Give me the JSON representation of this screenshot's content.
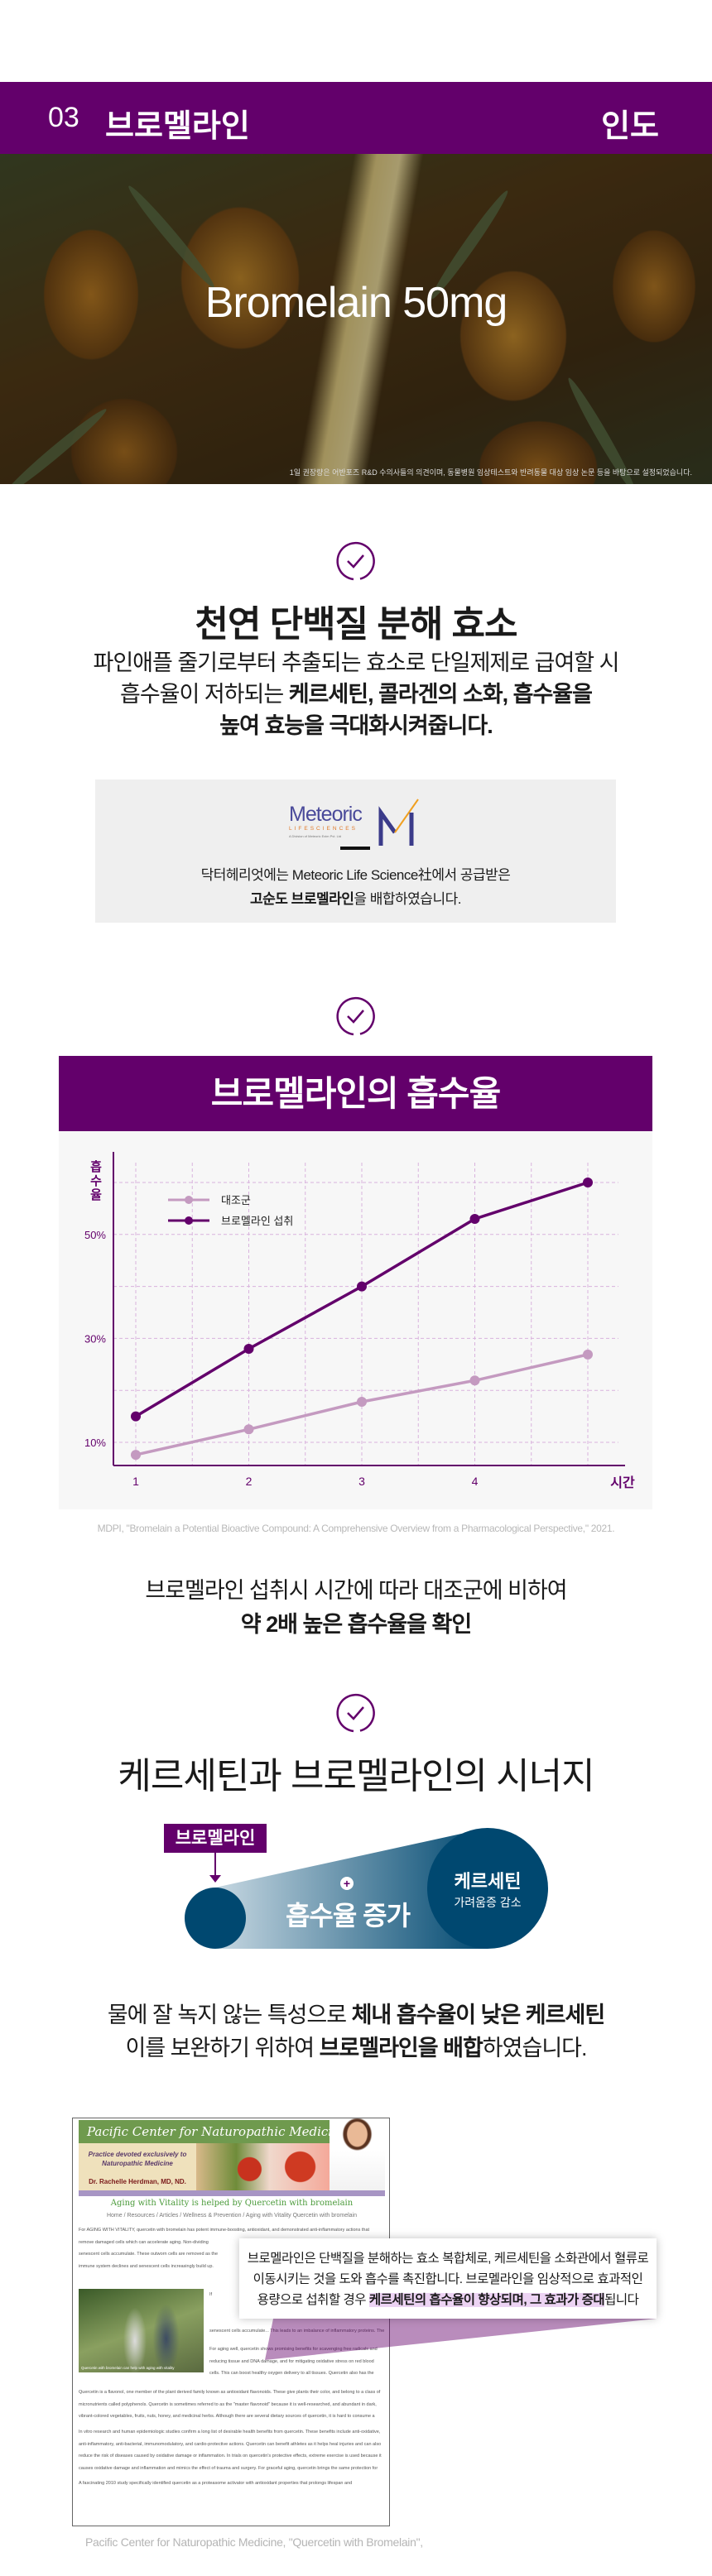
{
  "header": {
    "number": "03",
    "title": "브로멜라인",
    "origin": "인도"
  },
  "hero": {
    "headline": "Bromelain 50mg",
    "note": "1일 권장량은 어반포즈 R&D 수의사들의 의견이며, 동물병원 임상테스트와 반려동물 대상 임상 논문 등을 바탕으로 설정되었습니다."
  },
  "section1": {
    "title": "천연 단백질 분해 효소",
    "line1": "파인애플 줄기로부터 추출되는 효소로 단일제제로 급여할 시",
    "line2_a": "흡수율이 저하되는 ",
    "line2_b": "케르세틴, 콜라겐의 소화, 흡수율을",
    "line3": "높여 효능을 극대화시켜줍니다.",
    "supplier": {
      "logo_text": "Meteoric",
      "logo_sub": "LIFESCIENCES",
      "logo_tag": "A Division of Meteoric Exim Pvt. Ltd",
      "line1": "닥터헤리엇에는 Meteoric Life Science社에서 공급받은",
      "line2_bold": "고순도 브로멜라인",
      "line2_rest": "을 배합하였습니다."
    }
  },
  "chart_section": {
    "title": "브로멜라인의 흡수율",
    "citation": "MDPI, \"Bromelain a Potential Bioactive Compound: A Comprehensive Overview from a Pharmacological Perspective,\" 2021.",
    "summary_line1": "브로멜라인 섭취시 시간에 따라 대조군에 비하여",
    "summary_line2": "약 2배 높은 흡수율을 확인"
  },
  "chart_data": {
    "type": "line",
    "xlabel": "시간",
    "ylabel": "흡수율",
    "x": [
      1,
      2,
      3,
      4,
      5
    ],
    "x_tick_labels": [
      "1",
      "2",
      "3",
      "4"
    ],
    "y_tick_labels": [
      "50%",
      "30%",
      "10%"
    ],
    "y_tick_values": [
      50,
      30,
      10
    ],
    "ylim": [
      5.5,
      65
    ],
    "grid": true,
    "legend_position": "top-left",
    "series": [
      {
        "name": "대조군",
        "values": [
          7.6,
          12.5,
          17.8,
          21.9,
          26.9
        ],
        "color": "#c49ac0"
      },
      {
        "name": "브로멜라인 섭취",
        "values": [
          15,
          28,
          40,
          53,
          60
        ],
        "color": "#63006b"
      }
    ]
  },
  "synergy": {
    "title": "케르세틴과 브로멜라인의 시너지",
    "tag": "브로멜라인",
    "plus": "+",
    "center_label": "흡수율 증가",
    "circle_title": "케르세틴",
    "circle_sub": "가려움증 감소",
    "line1_a": "물에 잘 녹지 않는 특성으로 ",
    "line1_b": "체내 흡수율이 낮은 케르세틴",
    "line2_a": "이를 보완하기 위하여 ",
    "line2_b": "브로멜라인을 배합",
    "line2_c": "하였습니다."
  },
  "article": {
    "banner_title": "Pacific Center for Naturopathic Medicine",
    "tagline1": "Practice devoted exclusively to",
    "tagline2": "Naturopathic Medicine",
    "doctor": "Dr. Rachelle Herdman, MD, ND.",
    "headline": "Aging with Vitality is helped by Quercetin with bromelain",
    "breadcrumb": "Home / Resources / Articles / Wellness & Prevention / Aging with Vitality Quercetin with bromelain",
    "para1": "For AGING WITH VITALITY, quercetin with bromelain has potent immune-boosting, antioxidant, and demonstrated anti-inflammatory actions that remove damaged cells which can accelerate aging. Non-dividing senescent cells accumulate. These outworn cells are removed as the immune system declines and senescent cells increasingly build up. Quercetin with bromelain removes these cells by inducing time-appropriate apoptosis or cell death, promoting health and enhancing youthfulness of tissues.",
    "photo_caption": "Quercetin with bromelain can help with aging with vitality",
    "para2": "If senescent cells accumulate... This leads to an imbalance of inflammatory proteins. The specific type of inflammation that follows is believed to be one driver of the aging process.",
    "para3": "For aging well, quercetin shows promising benefits for scavenging free radicals and reducing tissue and DNA damage, and for mitigating oxidative stress on red blood cells. This can boost healthy oxygen delivery to all tissues. Quercetin also has the ability to calm and balance the body's pro-inflammatory pathways and down regulate enzymes and hormones responsible for the inflammatory response. By neutralizing oxygen free radicals and reactive molecules of nitrogen, quercetin shields tissues from oxidative damage. In regard to aging with vitality, quercetin increases the number and function of mitochondria, the energy-producing factories found in cells, providing a profound boost to the central nervous system and entire metabolism.",
    "para4": "Quercetin is a flavonol, one member of the plant derived family known as antioxidant flavonoids. These give plants their color, and belong to a class of micronutrients called polyphenols. Quercetin is sometimes referred to as the \"master flavonoid\" because it is well-researched, and abundant in dark, vibrant-colored vegetables, fruits, nuts, honey, and medicinal herbs. Although there are several dietary sources of quercetin, it is hard to consume a sufficient quantity in food to reach a therapeutic level.",
    "para5": "In vitro research and human epidemiologic studies confirm a long list of desirable health benefits from quercetin. These benefits include anti-oxidative, anti-inflammatory, anti-bacterial, immunomodulatory, and cardio-protective actions. Quercetin can benefit athletes as it helps heal injuries and can also reduce the risk of diseases caused by oxidative damage or inflammation. In trials on quercetin's protective effects, extreme exercise is used because it causes oxidative damage and inflammation and mimics the effect of trauma and surgery. For graceful aging, quercetin brings the same protection for the heart, for muscles, and for the immune system.",
    "para6": "A fascinating 2010 study specifically identified quercetin as a proteasome activator with antioxidant properties that prolongs lifespan and",
    "callout_line1": "브로멜라인은 단백질을 분해하는 효소 복합체로, 케르세틴을 소화관에서 혈류로",
    "callout_line2": "이동시키는 것을 도와 흡수를 촉진합니다. 브로멜라인을 임상적으로 효과적인",
    "callout_line3_a": "용량으로 섭취할 경우 ",
    "callout_line3_hl": "케르세틴의 흡수율이 향상되며, 그 효과가 증대",
    "callout_line3_b": "됩니다",
    "citation": "Pacific Center for Naturopathic Medicine, \"Quercetin with Bromelain\","
  },
  "colors": {
    "brand_purple": "#63006b",
    "navy": "#004870",
    "control_series": "#c49ac0",
    "highlight": "#ecd3f3"
  }
}
